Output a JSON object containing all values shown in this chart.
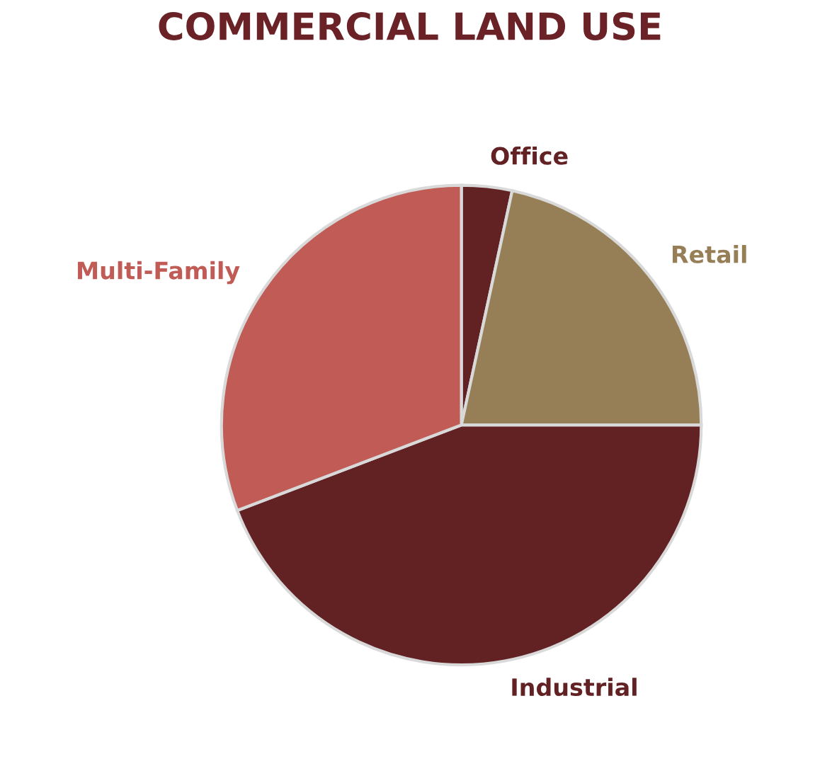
{
  "chart_data": {
    "type": "pie",
    "title": "COMMERCIAL LAND USE",
    "categories": [
      "Office",
      "Retail",
      "Industrial",
      "Multi-Family"
    ],
    "values": [
      3.4,
      21.6,
      44.2,
      30.8
    ],
    "colors": [
      "#622224",
      "#967f56",
      "#622224",
      "#c05b55"
    ],
    "legend": false
  }
}
